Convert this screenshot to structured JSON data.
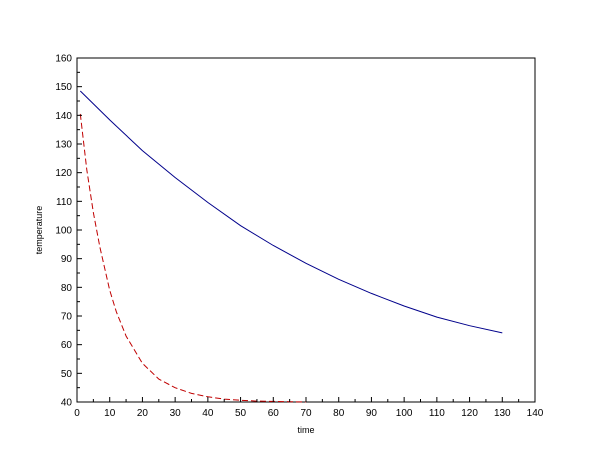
{
  "chart_data": {
    "type": "line",
    "title": "",
    "xlabel": "time",
    "ylabel": "temperature",
    "xlim": [
      0,
      140
    ],
    "ylim": [
      40,
      160
    ],
    "xticks": [
      0,
      10,
      20,
      30,
      40,
      50,
      60,
      70,
      80,
      90,
      100,
      110,
      120,
      130,
      140
    ],
    "yticks": [
      40,
      50,
      60,
      70,
      80,
      90,
      100,
      110,
      120,
      130,
      140,
      150,
      160
    ],
    "grid": false,
    "legend": "none",
    "series": [
      {
        "color": "#00008b",
        "style": "solid",
        "x": [
          1,
          10,
          20,
          30,
          40,
          50,
          60,
          70,
          80,
          90,
          100,
          110,
          120,
          130
        ],
        "y": [
          148.5,
          138.4,
          127.7,
          118.3,
          109.6,
          101.5,
          94.6,
          88.4,
          82.8,
          77.9,
          73.5,
          69.6,
          66.6,
          64.1
        ]
      },
      {
        "color": "#c00000",
        "style": "dashed",
        "x": [
          1,
          3,
          5,
          7,
          10,
          12,
          15,
          20,
          25,
          30,
          35,
          40,
          45,
          50,
          55,
          60,
          65,
          70
        ],
        "y": [
          140.5,
          121,
          106,
          94,
          79,
          71.5,
          63,
          53.5,
          48,
          45,
          43,
          41.8,
          41,
          40.6,
          40.3,
          40.2,
          40.1,
          40
        ]
      }
    ]
  }
}
